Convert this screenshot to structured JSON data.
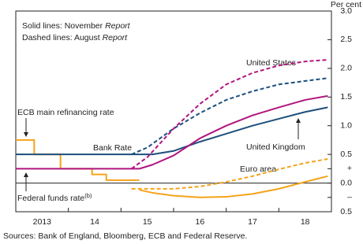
{
  "chart_data": {
    "type": "line",
    "unit_label": "Per cent",
    "notes": [
      {
        "text": "Solid lines:  November",
        "italic": "Report"
      },
      {
        "text": "Dashed lines:  August",
        "italic": "Report"
      }
    ],
    "labels": {
      "ecb": "ECB main refinancing rate",
      "bank_rate": "Bank Rate",
      "fed": "Federal funds rate",
      "fed_note": "(b)",
      "us": "United States",
      "uk": "United Kingdom",
      "euro": "Euro area"
    },
    "source": "Sources: Bank of England, Bloomberg, ECB and Federal Reserve.",
    "categories": [
      "2013",
      "14",
      "15",
      "16",
      "17",
      "18"
    ],
    "xlim": [
      2013,
      2019
    ],
    "xticks": [
      2013,
      2014,
      2015,
      2016,
      2017,
      2018,
      2019
    ],
    "ylim": [
      -0.5,
      3.0
    ],
    "yticks": [
      {
        "value": -0.5,
        "label": "0.5"
      },
      {
        "value": -0.25,
        "label": "–"
      },
      {
        "value": 0,
        "label": "0.0"
      },
      {
        "value": 0.25,
        "label": "+"
      },
      0.5,
      {
        "value": 1,
        "label": "1.0"
      },
      1.5,
      {
        "value": 2,
        "label": "2.0"
      },
      2.5,
      {
        "value": 3,
        "label": "3.0"
      }
    ],
    "series": [
      {
        "color": "#f5a31a",
        "dashed": false,
        "x": [
          2013,
          2013.35,
          2013.35,
          2013.85,
          2013.85,
          2014.45,
          2014.45,
          2014.72,
          2014.72,
          2015.35
        ],
        "values": [
          0.75,
          0.75,
          0.5,
          0.5,
          0.25,
          0.25,
          0.15,
          0.15,
          0.05,
          0.05
        ]
      },
      {
        "color": "#1c4f7c",
        "dashed": false,
        "x": [
          2013,
          2015.35
        ],
        "values": [
          0.5,
          0.5
        ]
      },
      {
        "color": "#b0157e",
        "dashed": false,
        "x": [
          2013,
          2015.35
        ],
        "values": [
          0.25,
          0.25
        ]
      },
      {
        "color": "#1c4f7c",
        "dashed": false,
        "x": [
          2015.35,
          2015.6,
          2016,
          2016.5,
          2017,
          2017.5,
          2018,
          2018.5,
          2018.93
        ],
        "values": [
          0.5,
          0.5,
          0.56,
          0.72,
          0.86,
          1.0,
          1.12,
          1.24,
          1.32
        ]
      },
      {
        "color": "#1c4f7c",
        "dashed": true,
        "x": [
          2015.2,
          2015.5,
          2016,
          2016.5,
          2017,
          2017.5,
          2018,
          2018.5,
          2018.93
        ],
        "values": [
          0.5,
          0.62,
          0.95,
          1.22,
          1.45,
          1.6,
          1.72,
          1.78,
          1.83
        ]
      },
      {
        "color": "#b0157e",
        "dashed": false,
        "x": [
          2015.35,
          2015.6,
          2016,
          2016.5,
          2017,
          2017.5,
          2018,
          2018.5,
          2018.93
        ],
        "values": [
          0.25,
          0.32,
          0.48,
          0.78,
          1.0,
          1.18,
          1.32,
          1.45,
          1.52
        ]
      },
      {
        "color": "#b0157e",
        "dashed": true,
        "x": [
          2015.2,
          2015.5,
          2016,
          2016.5,
          2017,
          2017.5,
          2018,
          2018.5,
          2018.93
        ],
        "values": [
          0.25,
          0.45,
          0.95,
          1.38,
          1.72,
          1.92,
          2.05,
          2.12,
          2.15
        ]
      },
      {
        "color": "#f5a31a",
        "dashed": false,
        "x": [
          2015.35,
          2015.6,
          2016,
          2016.5,
          2017,
          2017.5,
          2018,
          2018.5,
          2018.93
        ],
        "values": [
          -0.12,
          -0.17,
          -0.22,
          -0.25,
          -0.24,
          -0.19,
          -0.1,
          0.02,
          0.12
        ]
      },
      {
        "color": "#f5a31a",
        "dashed": true,
        "x": [
          2015.2,
          2015.5,
          2016,
          2016.5,
          2017,
          2017.5,
          2018,
          2018.5,
          2018.93
        ],
        "values": [
          -0.1,
          -0.1,
          -0.1,
          -0.06,
          0.02,
          0.12,
          0.24,
          0.35,
          0.42
        ]
      }
    ]
  }
}
